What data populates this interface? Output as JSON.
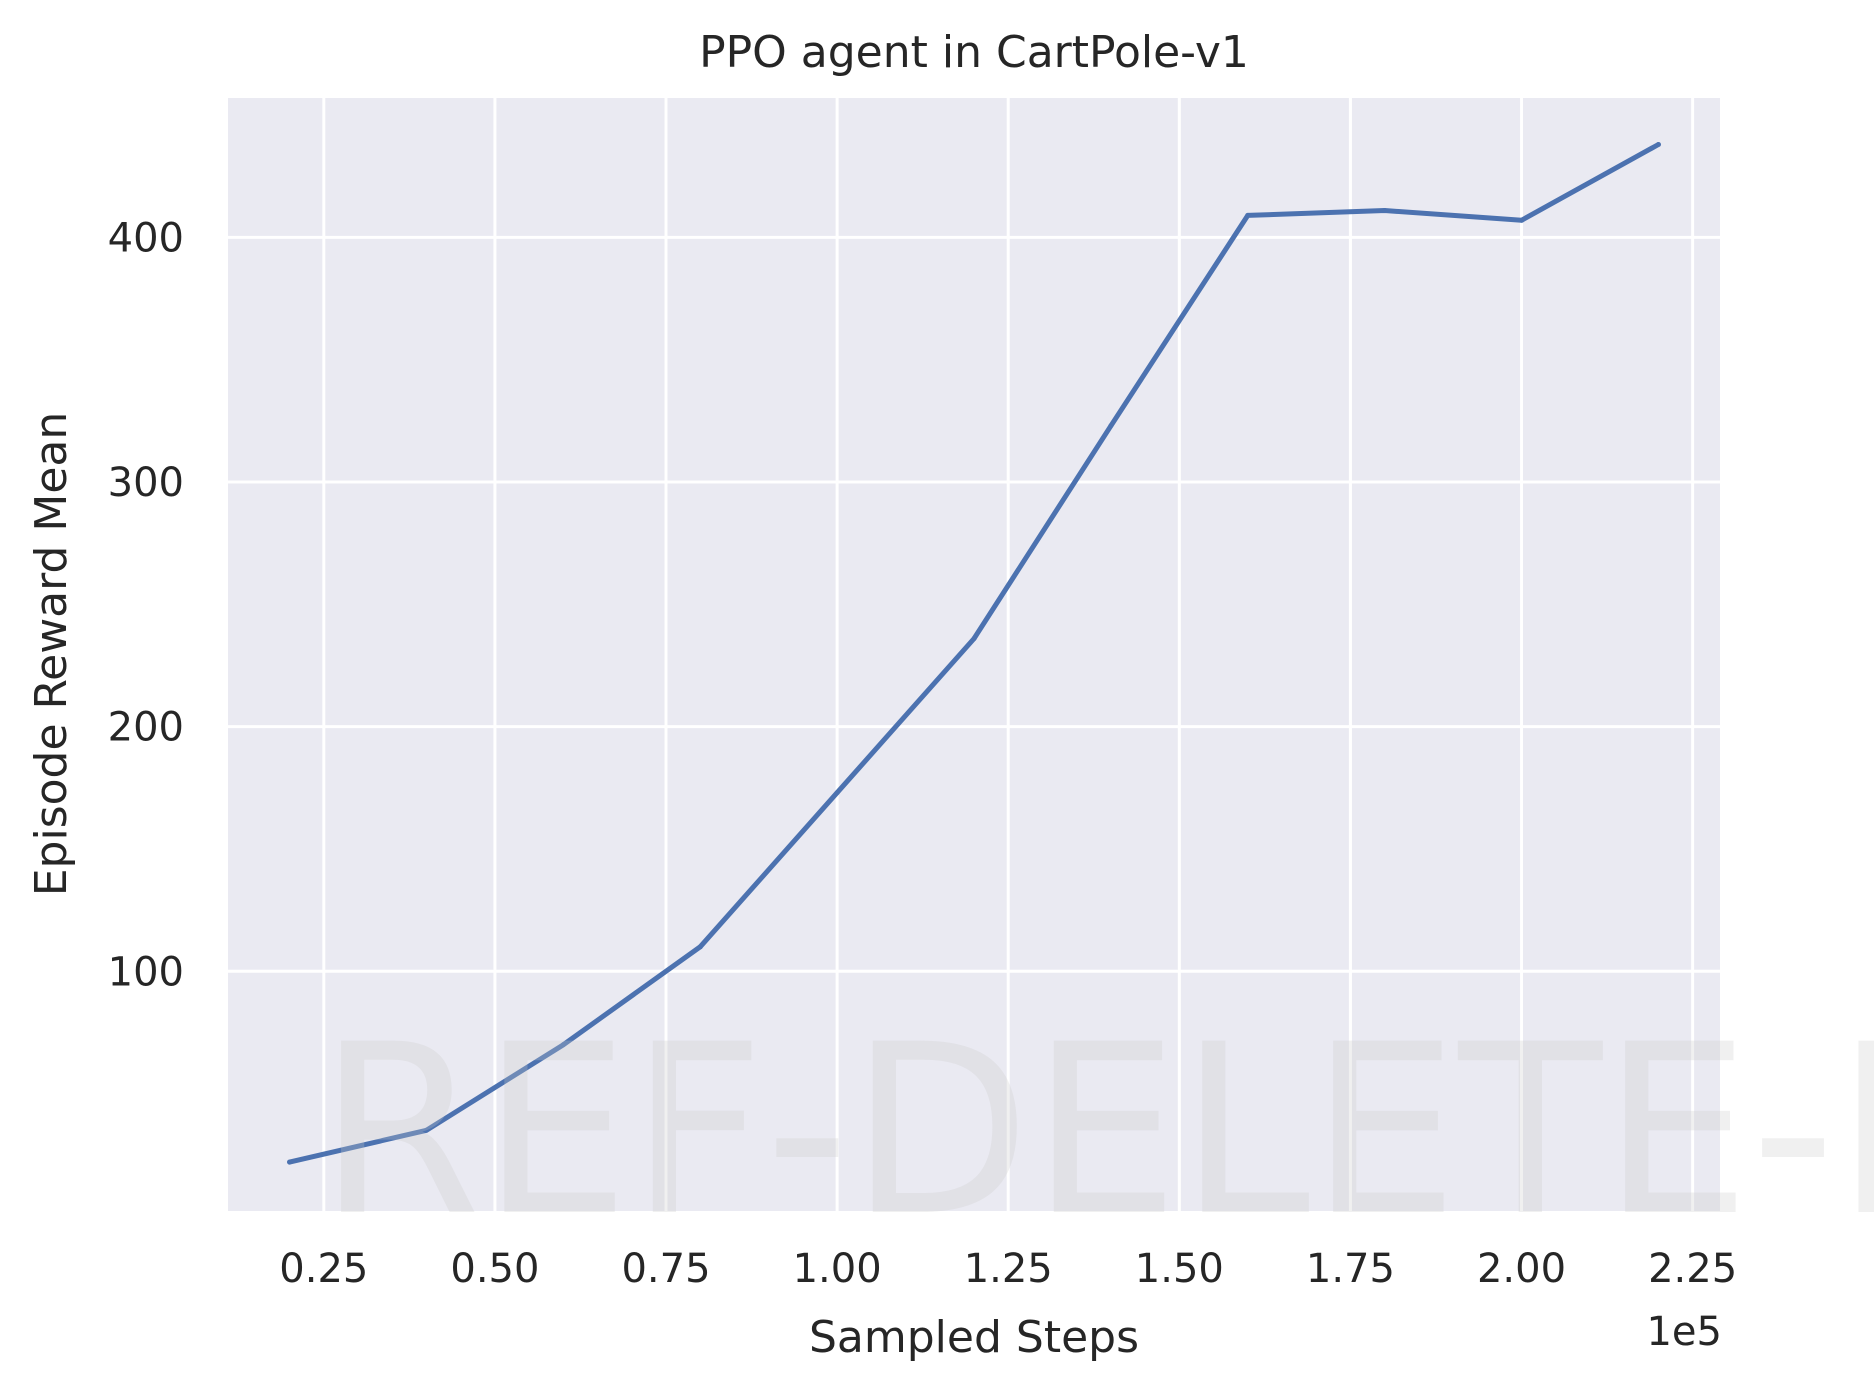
{
  "chart_data": {
    "type": "line",
    "title": "PPO agent in CartPole-v1",
    "xlabel": "Sampled Steps",
    "ylabel": "Episode Reward Mean",
    "x_offset_label": "1e5",
    "xlim": [
      0.11,
      2.29
    ],
    "ylim": [
      2,
      457
    ],
    "xticks": [
      0.25,
      0.5,
      0.75,
      1.0,
      1.25,
      1.5,
      1.75,
      2.0,
      2.25
    ],
    "xtick_labels": [
      "0.25",
      "0.50",
      "0.75",
      "1.00",
      "1.25",
      "1.50",
      "1.75",
      "2.00",
      "2.25"
    ],
    "yticks": [
      100,
      200,
      300,
      400
    ],
    "ytick_labels": [
      "100",
      "200",
      "300",
      "400"
    ],
    "grid": true,
    "series": [
      {
        "x": [
          0.2,
          0.4,
          0.6,
          0.8,
          1.0,
          1.2,
          1.4,
          1.6,
          1.8,
          2.0,
          2.2
        ],
        "values": [
          22,
          35,
          70,
          110,
          173,
          236,
          323,
          409,
          411,
          407,
          438
        ]
      }
    ]
  },
  "watermark": "REF-DELETE-IT",
  "colors": {
    "plot_background": "#EAEAF2",
    "grid": "#FFFFFF",
    "line": "#4C72B0",
    "text": "#262626"
  }
}
